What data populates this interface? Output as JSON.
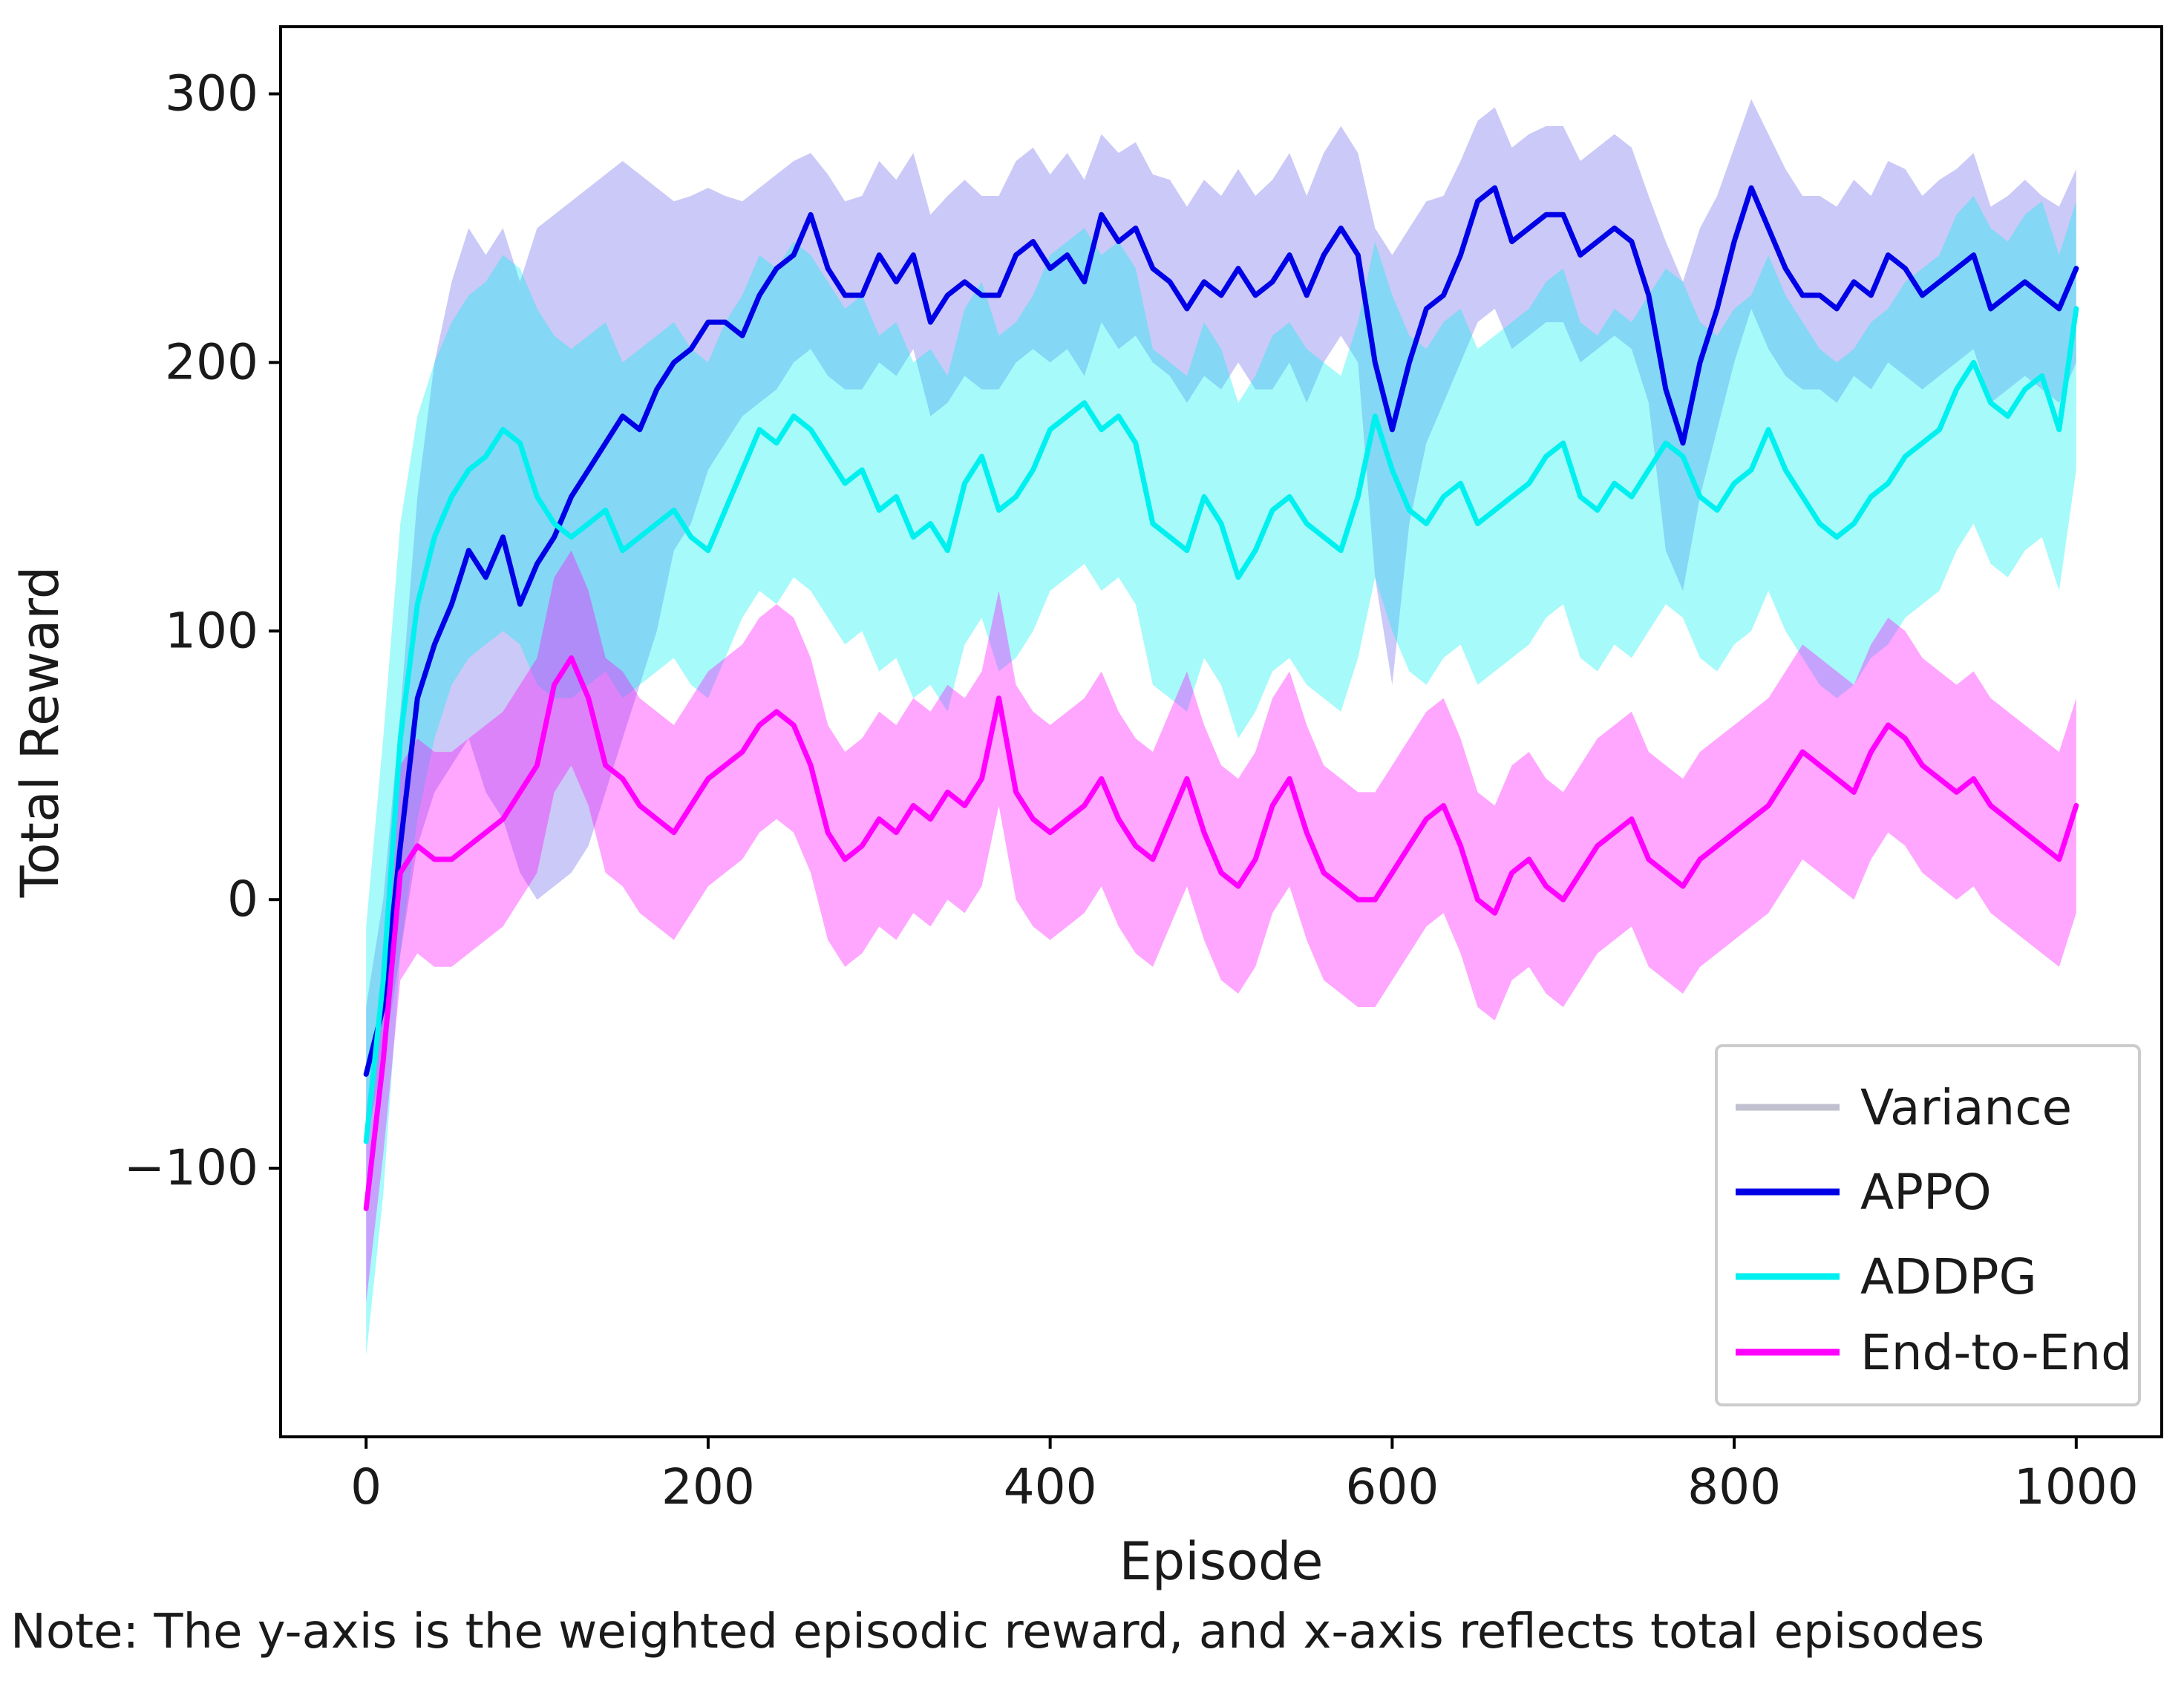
{
  "chart_data": {
    "type": "line",
    "xlabel": "Episode",
    "ylabel": "Total Reward",
    "xlim": [
      -50,
      1050
    ],
    "ylim": [
      -200,
      325
    ],
    "xticks": [
      0,
      200,
      400,
      600,
      800,
      1000
    ],
    "yticks": [
      -100,
      0,
      100,
      200,
      300
    ],
    "xtick_labels": [
      "0",
      "200",
      "400",
      "600",
      "800",
      "1000"
    ],
    "ytick_labels": [
      "−100",
      "0",
      "100",
      "200",
      "300"
    ],
    "legend_position": "lower-right",
    "legend": [
      {
        "label": "Variance",
        "color": "#c0c0d0"
      },
      {
        "label": "APPO",
        "color": "#0000e6"
      },
      {
        "label": "ADDPG",
        "color": "#00f0f0"
      },
      {
        "label": "End-to-End",
        "color": "#ff00ff"
      }
    ],
    "note": "Note: The y-axis is the weighted episodic reward, and x-axis reflects total episodes",
    "series": [
      {
        "name": "APPO",
        "color": "#0000e6",
        "band_color": "#a09cf0",
        "band_opacity": 0.55,
        "x": [
          0,
          10,
          20,
          30,
          40,
          50,
          60,
          70,
          80,
          90,
          100,
          110,
          120,
          130,
          140,
          150,
          160,
          170,
          180,
          190,
          200,
          210,
          220,
          230,
          240,
          250,
          260,
          270,
          280,
          290,
          300,
          310,
          320,
          330,
          340,
          350,
          360,
          370,
          380,
          390,
          400,
          410,
          420,
          430,
          440,
          450,
          460,
          470,
          480,
          490,
          500,
          510,
          520,
          530,
          540,
          550,
          560,
          570,
          580,
          590,
          600,
          610,
          620,
          630,
          640,
          650,
          660,
          670,
          680,
          690,
          700,
          710,
          720,
          730,
          740,
          750,
          760,
          770,
          780,
          790,
          800,
          810,
          820,
          830,
          840,
          850,
          860,
          870,
          880,
          890,
          900,
          910,
          920,
          930,
          940,
          950,
          960,
          970,
          980,
          990,
          1000
        ],
        "y": [
          -65,
          -40,
          20,
          75,
          95,
          110,
          130,
          120,
          135,
          110,
          125,
          135,
          150,
          160,
          170,
          180,
          175,
          190,
          200,
          205,
          215,
          215,
          210,
          225,
          235,
          240,
          255,
          235,
          225,
          225,
          240,
          230,
          240,
          215,
          225,
          230,
          225,
          225,
          240,
          245,
          235,
          240,
          230,
          255,
          245,
          250,
          235,
          230,
          220,
          230,
          225,
          235,
          225,
          230,
          240,
          225,
          240,
          250,
          240,
          200,
          175,
          200,
          220,
          225,
          240,
          260,
          265,
          245,
          250,
          255,
          255,
          240,
          245,
          250,
          245,
          225,
          190,
          170,
          200,
          220,
          245,
          265,
          250,
          235,
          225,
          225,
          220,
          230,
          225,
          240,
          235,
          225,
          230,
          235,
          240,
          220,
          225,
          230,
          225,
          220,
          235
        ],
        "lower": [
          -90,
          -60,
          -20,
          20,
          40,
          50,
          60,
          40,
          30,
          10,
          0,
          5,
          10,
          20,
          40,
          60,
          80,
          100,
          130,
          140,
          160,
          170,
          180,
          185,
          190,
          200,
          205,
          195,
          190,
          190,
          200,
          195,
          205,
          180,
          185,
          195,
          190,
          190,
          200,
          205,
          200,
          205,
          195,
          215,
          205,
          210,
          200,
          195,
          185,
          195,
          190,
          200,
          190,
          190,
          200,
          185,
          200,
          210,
          200,
          120,
          80,
          140,
          170,
          185,
          200,
          215,
          220,
          205,
          210,
          215,
          215,
          200,
          205,
          210,
          205,
          185,
          130,
          115,
          150,
          175,
          200,
          220,
          205,
          195,
          190,
          190,
          185,
          195,
          190,
          200,
          195,
          190,
          195,
          200,
          205,
          185,
          190,
          195,
          190,
          185,
          200
        ],
        "upper": [
          -40,
          0,
          70,
          150,
          200,
          230,
          250,
          240,
          250,
          230,
          250,
          255,
          260,
          265,
          270,
          275,
          270,
          265,
          260,
          262,
          265,
          262,
          260,
          265,
          270,
          275,
          278,
          270,
          260,
          262,
          275,
          268,
          278,
          255,
          262,
          268,
          262,
          262,
          275,
          280,
          270,
          278,
          268,
          285,
          278,
          282,
          270,
          268,
          258,
          268,
          262,
          272,
          262,
          268,
          278,
          262,
          278,
          288,
          278,
          250,
          240,
          250,
          260,
          262,
          275,
          290,
          295,
          280,
          285,
          288,
          288,
          275,
          280,
          285,
          280,
          262,
          245,
          230,
          250,
          262,
          280,
          298,
          285,
          272,
          262,
          262,
          258,
          268,
          262,
          275,
          272,
          262,
          268,
          272,
          278,
          258,
          262,
          268,
          262,
          258,
          272
        ]
      },
      {
        "name": "ADDPG",
        "color": "#00f0f0",
        "band_color": "#00f0f0",
        "band_opacity": 0.35,
        "x": [
          0,
          10,
          20,
          30,
          40,
          50,
          60,
          70,
          80,
          90,
          100,
          110,
          120,
          130,
          140,
          150,
          160,
          170,
          180,
          190,
          200,
          210,
          220,
          230,
          240,
          250,
          260,
          270,
          280,
          290,
          300,
          310,
          320,
          330,
          340,
          350,
          360,
          370,
          380,
          390,
          400,
          410,
          420,
          430,
          440,
          450,
          460,
          470,
          480,
          490,
          500,
          510,
          520,
          530,
          540,
          550,
          560,
          570,
          580,
          590,
          600,
          610,
          620,
          630,
          640,
          650,
          660,
          670,
          680,
          690,
          700,
          710,
          720,
          730,
          740,
          750,
          760,
          770,
          780,
          790,
          800,
          810,
          820,
          830,
          840,
          850,
          860,
          870,
          880,
          890,
          900,
          910,
          920,
          930,
          940,
          950,
          960,
          970,
          980,
          990,
          1000
        ],
        "y": [
          -90,
          -30,
          60,
          110,
          135,
          150,
          160,
          165,
          175,
          170,
          150,
          140,
          135,
          140,
          145,
          130,
          135,
          140,
          145,
          135,
          130,
          145,
          160,
          175,
          170,
          180,
          175,
          165,
          155,
          160,
          145,
          150,
          135,
          140,
          130,
          155,
          165,
          145,
          150,
          160,
          175,
          180,
          185,
          175,
          180,
          170,
          140,
          135,
          130,
          150,
          140,
          120,
          130,
          145,
          150,
          140,
          135,
          130,
          150,
          180,
          160,
          145,
          140,
          150,
          155,
          140,
          145,
          150,
          155,
          165,
          170,
          150,
          145,
          155,
          150,
          160,
          170,
          165,
          150,
          145,
          155,
          160,
          175,
          160,
          150,
          140,
          135,
          140,
          150,
          155,
          165,
          170,
          175,
          190,
          200,
          185,
          180,
          190,
          195,
          175,
          220
        ],
        "lower": [
          -170,
          -110,
          -20,
          30,
          60,
          80,
          90,
          95,
          100,
          95,
          80,
          75,
          75,
          80,
          85,
          75,
          80,
          85,
          90,
          80,
          75,
          90,
          105,
          115,
          110,
          120,
          115,
          105,
          95,
          100,
          85,
          90,
          75,
          80,
          70,
          95,
          105,
          85,
          90,
          100,
          115,
          120,
          125,
          115,
          120,
          110,
          80,
          75,
          70,
          90,
          80,
          60,
          70,
          85,
          90,
          80,
          75,
          70,
          90,
          120,
          100,
          85,
          80,
          90,
          95,
          80,
          85,
          90,
          95,
          105,
          110,
          90,
          85,
          95,
          90,
          100,
          110,
          105,
          90,
          85,
          95,
          100,
          115,
          100,
          90,
          80,
          75,
          80,
          90,
          95,
          105,
          110,
          115,
          130,
          140,
          125,
          120,
          130,
          135,
          115,
          160
        ],
        "upper": [
          -10,
          60,
          140,
          180,
          200,
          215,
          225,
          230,
          240,
          235,
          220,
          210,
          205,
          210,
          215,
          200,
          205,
          210,
          215,
          205,
          200,
          215,
          225,
          240,
          235,
          245,
          240,
          230,
          220,
          225,
          210,
          215,
          200,
          205,
          195,
          220,
          230,
          210,
          215,
          225,
          240,
          245,
          250,
          240,
          245,
          235,
          205,
          200,
          195,
          215,
          205,
          185,
          195,
          210,
          215,
          205,
          200,
          195,
          215,
          245,
          225,
          210,
          205,
          215,
          220,
          205,
          210,
          215,
          220,
          230,
          235,
          215,
          210,
          220,
          215,
          225,
          235,
          230,
          215,
          210,
          220,
          225,
          240,
          225,
          215,
          205,
          200,
          205,
          215,
          220,
          230,
          235,
          240,
          255,
          262,
          250,
          245,
          255,
          260,
          240,
          260
        ]
      },
      {
        "name": "End-to-End",
        "color": "#ff00ff",
        "band_color": "#ff00ff",
        "band_opacity": 0.35,
        "x": [
          0,
          10,
          20,
          30,
          40,
          50,
          60,
          70,
          80,
          90,
          100,
          110,
          120,
          130,
          140,
          150,
          160,
          170,
          180,
          190,
          200,
          210,
          220,
          230,
          240,
          250,
          260,
          270,
          280,
          290,
          300,
          310,
          320,
          330,
          340,
          350,
          360,
          370,
          380,
          390,
          400,
          410,
          420,
          430,
          440,
          450,
          460,
          470,
          480,
          490,
          500,
          510,
          520,
          530,
          540,
          550,
          560,
          570,
          580,
          590,
          600,
          610,
          620,
          630,
          640,
          650,
          660,
          670,
          680,
          690,
          700,
          710,
          720,
          730,
          740,
          750,
          760,
          770,
          780,
          790,
          800,
          810,
          820,
          830,
          840,
          850,
          860,
          870,
          880,
          890,
          900,
          910,
          920,
          930,
          940,
          950,
          960,
          970,
          980,
          990,
          1000
        ],
        "y": [
          -115,
          -60,
          10,
          20,
          15,
          15,
          20,
          25,
          30,
          40,
          50,
          80,
          90,
          75,
          50,
          45,
          35,
          30,
          25,
          35,
          45,
          50,
          55,
          65,
          70,
          65,
          50,
          25,
          15,
          20,
          30,
          25,
          35,
          30,
          40,
          35,
          45,
          75,
          40,
          30,
          25,
          30,
          35,
          45,
          30,
          20,
          15,
          30,
          45,
          25,
          10,
          5,
          15,
          35,
          45,
          25,
          10,
          5,
          0,
          0,
          10,
          20,
          30,
          35,
          20,
          0,
          -5,
          10,
          15,
          5,
          0,
          10,
          20,
          25,
          30,
          15,
          10,
          5,
          15,
          20,
          25,
          30,
          35,
          45,
          55,
          50,
          45,
          40,
          55,
          65,
          60,
          50,
          45,
          40,
          45,
          35,
          30,
          25,
          20,
          15,
          35
        ],
        "lower": [
          -150,
          -95,
          -30,
          -20,
          -25,
          -25,
          -20,
          -15,
          -10,
          0,
          10,
          40,
          50,
          35,
          10,
          5,
          -5,
          -10,
          -15,
          -5,
          5,
          10,
          15,
          25,
          30,
          25,
          10,
          -15,
          -25,
          -20,
          -10,
          -15,
          -5,
          -10,
          0,
          -5,
          5,
          35,
          0,
          -10,
          -15,
          -10,
          -5,
          5,
          -10,
          -20,
          -25,
          -10,
          5,
          -15,
          -30,
          -35,
          -25,
          -5,
          5,
          -15,
          -30,
          -35,
          -40,
          -40,
          -30,
          -20,
          -10,
          -5,
          -20,
          -40,
          -45,
          -30,
          -25,
          -35,
          -40,
          -30,
          -20,
          -15,
          -10,
          -25,
          -30,
          -35,
          -25,
          -20,
          -15,
          -10,
          -5,
          5,
          15,
          10,
          5,
          0,
          15,
          25,
          20,
          10,
          5,
          0,
          5,
          -5,
          -10,
          -15,
          -20,
          -25,
          -5
        ],
        "upper": [
          -80,
          -25,
          50,
          60,
          55,
          55,
          60,
          65,
          70,
          80,
          90,
          120,
          130,
          115,
          90,
          85,
          75,
          70,
          65,
          75,
          85,
          90,
          95,
          105,
          110,
          105,
          90,
          65,
          55,
          60,
          70,
          65,
          75,
          70,
          80,
          75,
          85,
          115,
          80,
          70,
          65,
          70,
          75,
          85,
          70,
          60,
          55,
          70,
          85,
          65,
          50,
          45,
          55,
          75,
          85,
          65,
          50,
          45,
          40,
          40,
          50,
          60,
          70,
          75,
          60,
          40,
          35,
          50,
          55,
          45,
          40,
          50,
          60,
          65,
          70,
          55,
          50,
          45,
          55,
          60,
          65,
          70,
          75,
          85,
          95,
          90,
          85,
          80,
          95,
          105,
          100,
          90,
          85,
          80,
          85,
          75,
          70,
          65,
          60,
          55,
          75
        ]
      }
    ]
  }
}
